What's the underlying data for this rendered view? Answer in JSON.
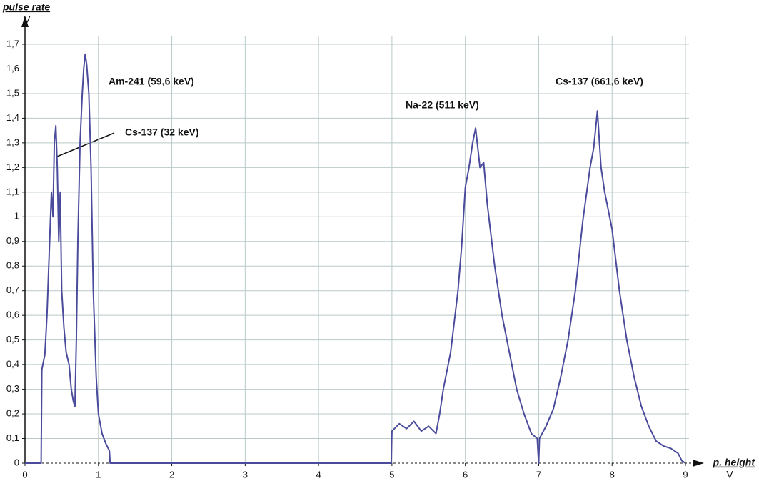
{
  "chart_data": {
    "type": "line",
    "y_label": "pulse rate",
    "y_unit": "V",
    "x_label": "p. height",
    "x_unit": "V",
    "annotations": [
      "Am-241 (59,6 keV)",
      "Cs-137 (32 keV)",
      "Na-22 (511 keV)",
      "Cs-137 (661,6 keV)"
    ],
    "color": "#4b4b9c",
    "x": [
      0,
      0.22,
      0.23,
      0.27,
      0.3,
      0.33,
      0.36,
      0.38,
      0.4,
      0.42,
      0.44,
      0.46,
      0.48,
      0.5,
      0.53,
      0.56,
      0.6,
      0.63,
      0.66,
      0.68,
      0.7,
      0.72,
      0.75,
      0.78,
      0.8,
      0.82,
      0.84,
      0.87,
      0.9,
      0.93,
      0.97,
      1.0,
      1.05,
      1.1,
      1.15,
      1.16,
      4.99,
      5.0,
      5.1,
      5.2,
      5.3,
      5.4,
      5.5,
      5.6,
      5.65,
      5.7,
      5.8,
      5.9,
      5.95,
      6.0,
      6.05,
      6.1,
      6.14,
      6.2,
      6.25,
      6.3,
      6.4,
      6.5,
      6.6,
      6.7,
      6.8,
      6.9,
      6.98,
      7.0,
      7.01,
      7.1,
      7.2,
      7.3,
      7.4,
      7.5,
      7.6,
      7.7,
      7.75,
      7.8,
      7.85,
      7.9,
      8.0,
      8.1,
      8.2,
      8.3,
      8.4,
      8.5,
      8.6,
      8.7,
      8.8,
      8.9,
      8.95,
      9.0
    ],
    "values": [
      0,
      0,
      0.38,
      0.44,
      0.6,
      0.85,
      1.1,
      1.0,
      1.3,
      1.37,
      1.2,
      0.9,
      1.1,
      0.7,
      0.55,
      0.45,
      0.4,
      0.3,
      0.25,
      0.23,
      0.5,
      0.9,
      1.3,
      1.5,
      1.6,
      1.66,
      1.62,
      1.5,
      1.2,
      0.7,
      0.35,
      0.2,
      0.12,
      0.08,
      0.05,
      0,
      0,
      0.13,
      0.16,
      0.14,
      0.17,
      0.13,
      0.15,
      0.12,
      0.2,
      0.3,
      0.45,
      0.7,
      0.88,
      1.12,
      1.2,
      1.3,
      1.36,
      1.2,
      1.22,
      1.05,
      0.8,
      0.6,
      0.45,
      0.3,
      0.2,
      0.12,
      0.1,
      0,
      0.1,
      0.15,
      0.22,
      0.35,
      0.5,
      0.7,
      0.98,
      1.2,
      1.28,
      1.43,
      1.2,
      1.1,
      0.95,
      0.7,
      0.5,
      0.35,
      0.23,
      0.15,
      0.09,
      0.07,
      0.06,
      0.04,
      0.01,
      0
    ],
    "xlim": [
      0,
      9
    ],
    "ylim": [
      0,
      1.7
    ],
    "xticks": [
      0,
      1,
      2,
      3,
      4,
      5,
      6,
      7,
      8,
      9
    ],
    "yticks": [
      0,
      {
        "value": 0.1,
        "label": "0,1"
      },
      {
        "value": 0.2,
        "label": "0,2"
      },
      {
        "value": 0.3,
        "label": "0,3"
      },
      {
        "value": 0.4,
        "label": "0,4"
      },
      {
        "value": 0.5,
        "label": "0,5"
      },
      {
        "value": 0.6,
        "label": "0,6"
      },
      {
        "value": 0.7,
        "label": "0,7"
      },
      {
        "value": 0.8,
        "label": "0,8"
      },
      {
        "value": 0.9,
        "label": "0,9"
      },
      1,
      {
        "value": 1.1,
        "label": "1,1"
      },
      {
        "value": 1.2,
        "label": "1,2"
      },
      {
        "value": 1.3,
        "label": "1,3"
      },
      {
        "value": 1.4,
        "label": "1,4"
      },
      {
        "value": 1.5,
        "label": "1,5"
      },
      {
        "value": 1.6,
        "label": "1,6"
      },
      {
        "value": 1.7,
        "label": "1,7"
      }
    ],
    "grid": true
  }
}
